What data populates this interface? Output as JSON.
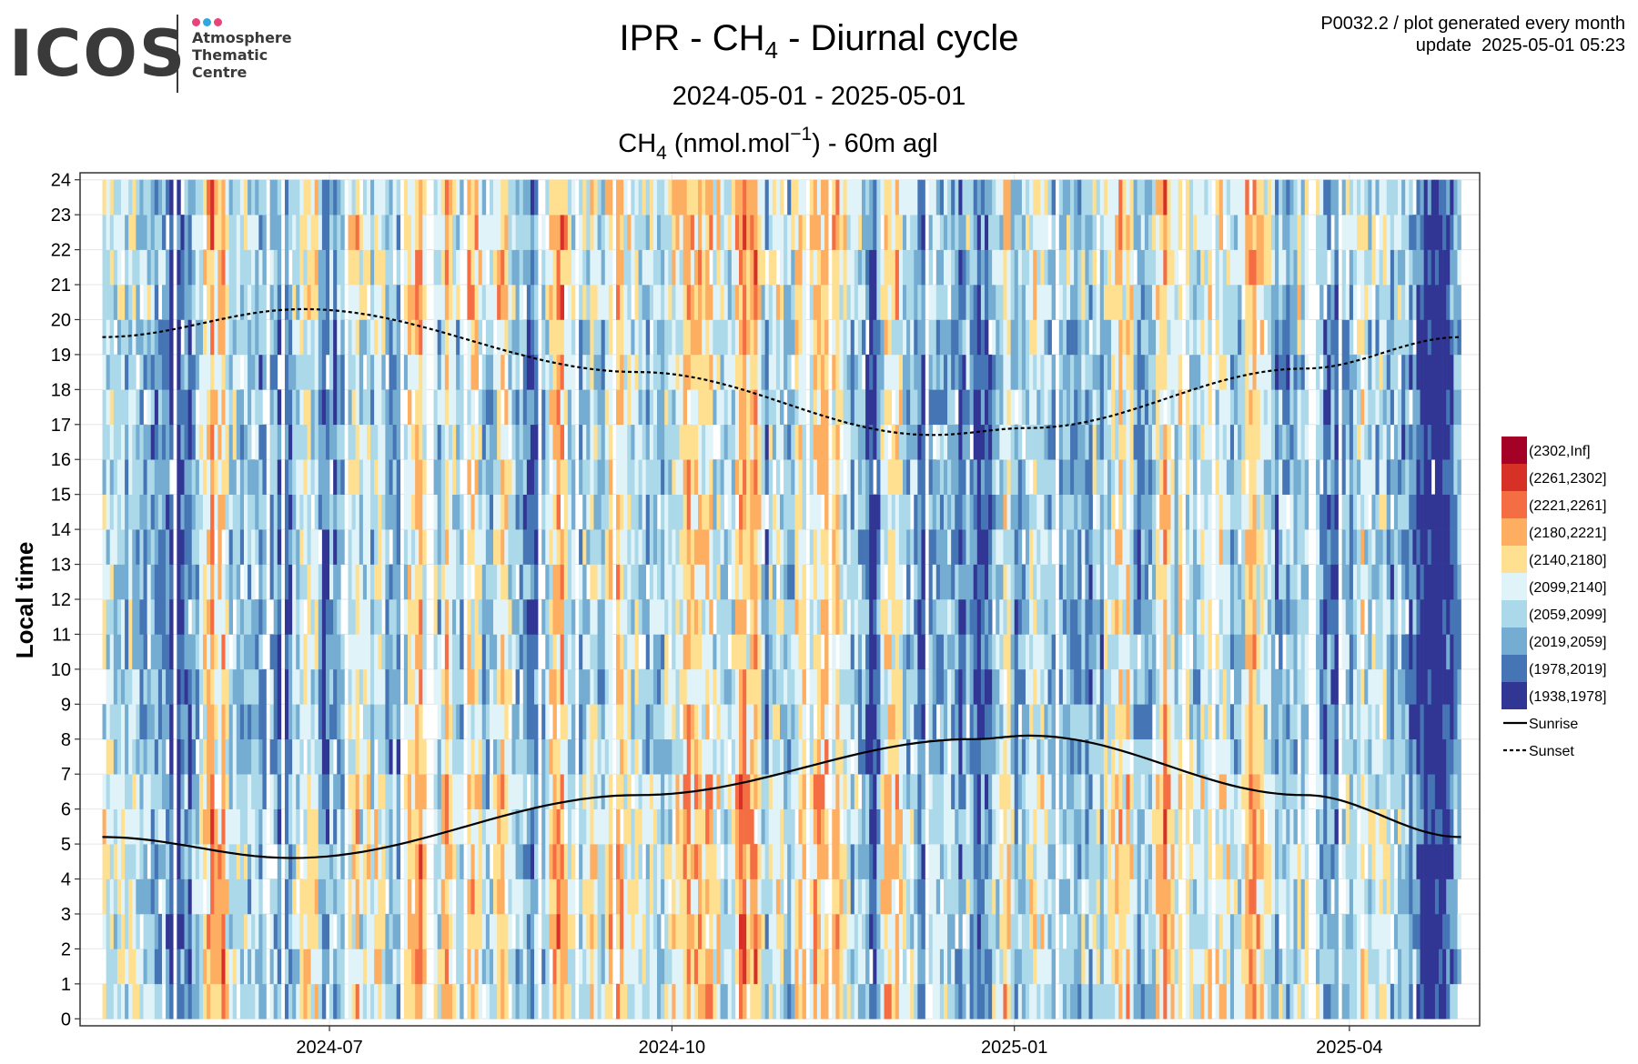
{
  "logo": {
    "wordmark": "ICOS",
    "line1": "Atmosphere",
    "line2": "Thematic",
    "line3": "Centre",
    "dot_colors": [
      "#e8437a",
      "#2fa8e0",
      "#e8437a"
    ]
  },
  "header": {
    "title_prefix": "IPR - CH",
    "title_sub": "4",
    "title_suffix": " - Diurnal cycle",
    "date_range": "2024-05-01 - 2025-05-01",
    "meta_line1": "P0032.2 / plot generated every month",
    "meta_line2": "update  2025-05-01 05:23"
  },
  "chart_data": {
    "type": "heatmap",
    "subtitle_prefix": "CH",
    "subtitle_sub": "4",
    "subtitle_mid": " (nmol.mol",
    "subtitle_sup": "−1",
    "subtitle_suffix": ") - 60m agl",
    "ylabel": "Local time",
    "xlabel": "",
    "x_start": "2024-05-01",
    "x_end": "2025-05-01",
    "xlim": [
      "2024-04-25",
      "2025-05-06"
    ],
    "ylim": [
      -0.2,
      24.2
    ],
    "x_ticks": [
      "2024-07",
      "2024-10",
      "2025-01",
      "2025-04"
    ],
    "y_ticks": [
      0,
      1,
      2,
      3,
      4,
      5,
      6,
      7,
      8,
      9,
      10,
      11,
      12,
      13,
      14,
      15,
      16,
      17,
      18,
      19,
      20,
      21,
      22,
      23,
      24
    ],
    "grid": true,
    "legend_position": "right",
    "bins": [
      {
        "label": "(2302,Inf]",
        "color": "#a50026"
      },
      {
        "label": "(2261,2302]",
        "color": "#d73027"
      },
      {
        "label": "(2221,2261]",
        "color": "#f46d43"
      },
      {
        "label": "(2180,2221]",
        "color": "#fdae61"
      },
      {
        "label": "(2140,2180]",
        "color": "#fee090"
      },
      {
        "label": "(2099,2140]",
        "color": "#e0f3f8"
      },
      {
        "label": "(2059,2099]",
        "color": "#abd9e9"
      },
      {
        "label": "(2019,2059]",
        "color": "#74add1"
      },
      {
        "label": "(1978,2019]",
        "color": "#4575b4"
      },
      {
        "label": "(1938,1978]",
        "color": "#313695"
      }
    ],
    "lines": [
      {
        "name": "Sunrise",
        "style": "solid",
        "points": [
          [
            "2024-05-01",
            5.2
          ],
          [
            "2024-06-21",
            4.6
          ],
          [
            "2024-09-22",
            6.4
          ],
          [
            "2024-12-21",
            8.0
          ],
          [
            "2025-01-05",
            8.1
          ],
          [
            "2025-03-20",
            6.4
          ],
          [
            "2025-05-01",
            5.2
          ]
        ]
      },
      {
        "name": "Sunset",
        "style": "dashed",
        "points": [
          [
            "2024-05-01",
            19.5
          ],
          [
            "2024-06-24",
            20.3
          ],
          [
            "2024-09-22",
            18.5
          ],
          [
            "2024-12-10",
            16.7
          ],
          [
            "2025-01-05",
            16.9
          ],
          [
            "2025-03-20",
            18.6
          ],
          [
            "2025-05-01",
            19.5
          ]
        ]
      }
    ]
  }
}
